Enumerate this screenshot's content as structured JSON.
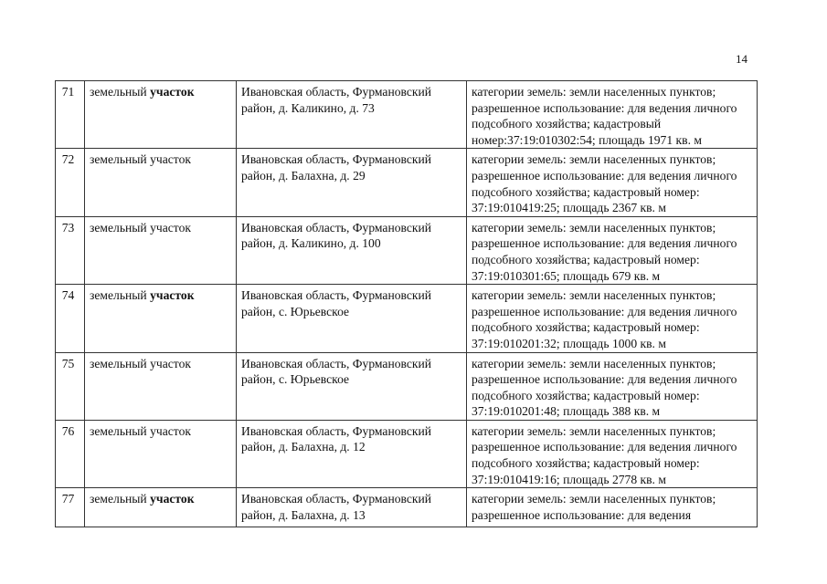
{
  "page_number": "14",
  "rows": [
    {
      "num": "71",
      "type_a": "земельный ",
      "type_b": "участок",
      "address": "Ивановская область, Фурмановский район, д. Каликино, д. 73",
      "details": "категории земель: земли населенных пунктов; разрешенное использование: для ведения личного подсобного хозяйства; кадастровый номер:37:19:010302:54; площадь 1971 кв. м"
    },
    {
      "num": "72",
      "type_a": "земельный ",
      "type_b": "участок",
      "address": "Ивановская область, Фурмановский район, д. Балахна, д. 29",
      "details": "категории земель: земли населенных пунктов; разрешенное использование: для ведения личного подсобного хозяйства; кадастровый номер: 37:19:010419:25; площадь 2367 кв. м"
    },
    {
      "num": "73",
      "type_a": "земельный ",
      "type_b": "участок",
      "address": "Ивановская область, Фурмановский район, д. Каликино, д. 100",
      "details": "категории земель: земли населенных пунктов; разрешенное использование: для ведения личного подсобного хозяйства; кадастровый номер: 37:19:010301:65; площадь 679 кв. м"
    },
    {
      "num": "74",
      "type_a": "земельный ",
      "type_b": "участок",
      "address": "Ивановская область, Фурмановский район, с. Юрьевское",
      "details": "категории земель: земли населенных пунктов; разрешенное использование: для ведения личного подсобного хозяйства; кадастровый номер: 37:19:010201:32; площадь 1000 кв. м"
    },
    {
      "num": "75",
      "type_a": "земельный ",
      "type_b": "участок",
      "address": "Ивановская область, Фурмановский район, с. Юрьевское",
      "details": "категории земель: земли населенных пунктов; разрешенное использование: для ведения личного подсобного хозяйства; кадастровый номер: 37:19:010201:48; площадь 388 кв. м"
    },
    {
      "num": "76",
      "type_a": "земельный ",
      "type_b": "участок",
      "address": "Ивановская область, Фурмановский район, д. Балахна, д. 12",
      "details": "категории земель: земли населенных пунктов; разрешенное использование: для ведения личного подсобного хозяйства; кадастровый номер: 37:19:010419:16; площадь 2778 кв. м"
    },
    {
      "num": "77",
      "type_a": "земельный ",
      "type_b": "участок",
      "address": "Ивановская область, Фурмановский район, д. Балахна, д. 13",
      "details": "категории земель: земли населенных пунктов; разрешенное использование: для ведения"
    }
  ]
}
